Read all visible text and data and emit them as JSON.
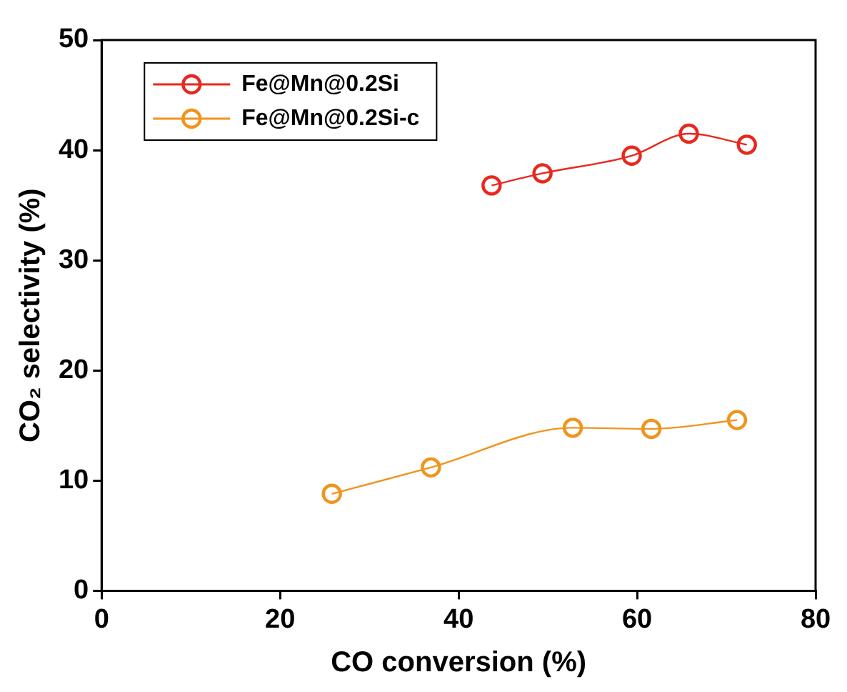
{
  "chart_data": {
    "type": "line",
    "xlabel": "CO conversion (%)",
    "ylabel": "CO₂ selectivity (%)",
    "xlim": [
      0,
      80
    ],
    "xticks": [
      0,
      20,
      40,
      60,
      80
    ],
    "ylim": [
      0,
      50
    ],
    "yticks": [
      0,
      10,
      20,
      30,
      40,
      50
    ],
    "grid": false,
    "legend": "top left",
    "marker": "circle",
    "line_style": "solid",
    "series": [
      {
        "name": "Fe@Mn@0.2Si",
        "color": "#e8281e",
        "x": [
          43.7,
          49.4,
          59.4,
          65.8,
          72.3
        ],
        "values": [
          36.8,
          37.9,
          39.5,
          41.5,
          40.5
        ]
      },
      {
        "name": "Fe@Mn@0.2Si-c",
        "color": "#f0941e",
        "x": [
          25.8,
          36.9,
          52.8,
          61.6,
          71.2
        ],
        "values": [
          8.8,
          11.2,
          14.8,
          14.7,
          15.5
        ]
      }
    ]
  }
}
